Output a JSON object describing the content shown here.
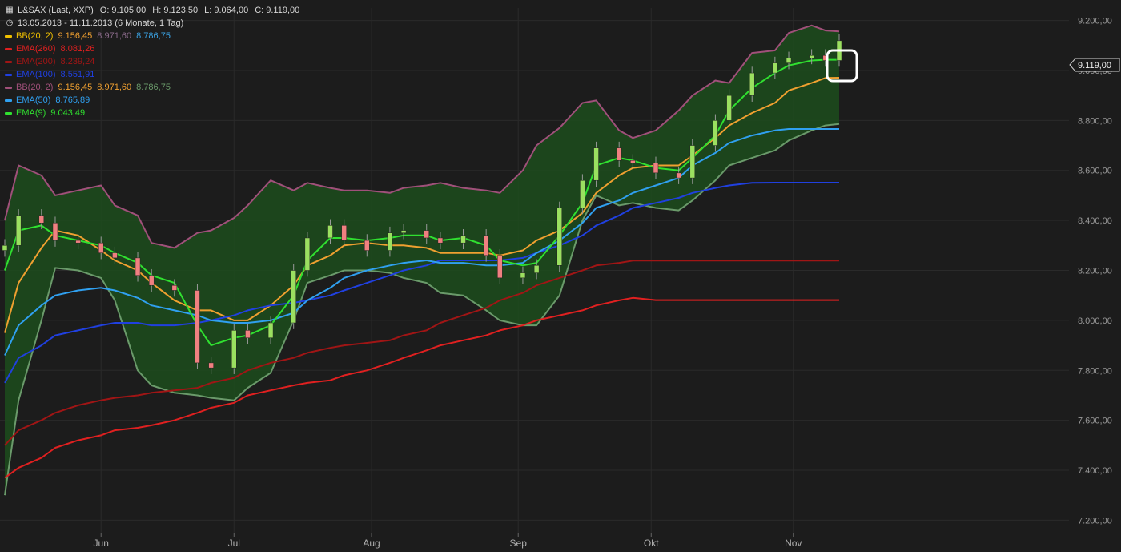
{
  "header": {
    "symbol": "L&SAX (Last, XXP)",
    "open": "O: 9.105,00",
    "high": "H: 9.123,50",
    "low": "L: 9.064,00",
    "close": "C: 9.119,00",
    "range": "13.05.2013 - 11.11.2013 (6 Monate, 1 Tag)"
  },
  "legend": [
    {
      "name": "BB(20, 2)",
      "values": [
        {
          "v": "9.156,45",
          "color": "#f0a030"
        },
        {
          "v": "8.971,60",
          "color": "#8a6a8a"
        },
        {
          "v": "8.786,75",
          "color": "#3aa0e0"
        }
      ],
      "color": "#f0c000"
    },
    {
      "name": "EMA(260)",
      "values": [
        {
          "v": "8.081,26",
          "color": "#e02020"
        }
      ],
      "color": "#e02020"
    },
    {
      "name": "EMA(200)",
      "values": [
        {
          "v": "8.239,24",
          "color": "#a01515"
        }
      ],
      "color": "#a01515"
    },
    {
      "name": "EMA(100)",
      "values": [
        {
          "v": "8.551,91",
          "color": "#2040e0"
        }
      ],
      "color": "#2040e0"
    },
    {
      "name": "BB(20, 2)",
      "values": [
        {
          "v": "9.156,45",
          "color": "#f0a030"
        },
        {
          "v": "8.971,60",
          "color": "#f0a030"
        },
        {
          "v": "8.786,75",
          "color": "#6a9a6a"
        }
      ],
      "color": "#a0507a"
    },
    {
      "name": "EMA(50)",
      "values": [
        {
          "v": "8.765,89",
          "color": "#30a0f0"
        }
      ],
      "color": "#30a0f0"
    },
    {
      "name": "EMA(9)",
      "values": [
        {
          "v": "9.043,49",
          "color": "#30e030"
        }
      ],
      "color": "#30e030"
    }
  ],
  "price_label": "9.119,00",
  "chart_data": {
    "type": "line",
    "title": "L&SAX (Last, XXP)",
    "ylim": [
      7150,
      9250
    ],
    "yticks": [
      {
        "v": 7200,
        "label": "7.200,00"
      },
      {
        "v": 7400,
        "label": "7.400,00"
      },
      {
        "v": 7600,
        "label": "7.600,00"
      },
      {
        "v": 7800,
        "label": "7.800,00"
      },
      {
        "v": 8000,
        "label": "8.000,00"
      },
      {
        "v": 8200,
        "label": "8.200,00"
      },
      {
        "v": 8400,
        "label": "8.400,00"
      },
      {
        "v": 8600,
        "label": "8.600,00"
      },
      {
        "v": 8800,
        "label": "8.800,00"
      },
      {
        "v": 9000,
        "label": "9.000,00"
      },
      {
        "v": 9200,
        "label": "9.200,00"
      }
    ],
    "x": [
      "2013-05-13",
      "2013-05-16",
      "2013-05-21",
      "2013-05-24",
      "2013-05-29",
      "2013-06-03",
      "2013-06-06",
      "2013-06-11",
      "2013-06-14",
      "2013-06-19",
      "2013-06-24",
      "2013-06-27",
      "2013-07-02",
      "2013-07-05",
      "2013-07-10",
      "2013-07-15",
      "2013-07-18",
      "2013-07-23",
      "2013-07-26",
      "2013-07-31",
      "2013-08-05",
      "2013-08-08",
      "2013-08-13",
      "2013-08-16",
      "2013-08-21",
      "2013-08-26",
      "2013-08-29",
      "2013-09-03",
      "2013-09-06",
      "2013-09-11",
      "2013-09-16",
      "2013-09-19",
      "2013-09-24",
      "2013-09-27",
      "2013-10-02",
      "2013-10-07",
      "2013-10-10",
      "2013-10-15",
      "2013-10-18",
      "2013-10-23",
      "2013-10-28",
      "2013-10-31",
      "2013-11-05",
      "2013-11-08",
      "2013-11-11"
    ],
    "xticks": [
      {
        "date": "2013-06-03",
        "label": "Jun"
      },
      {
        "date": "2013-07-02",
        "label": "Jul"
      },
      {
        "date": "2013-08-01",
        "label": "Aug"
      },
      {
        "date": "2013-09-02",
        "label": "Sep"
      },
      {
        "date": "2013-10-01",
        "label": "Okt"
      },
      {
        "date": "2013-11-01",
        "label": "Nov"
      }
    ],
    "grid": true,
    "close": [
      8300,
      8420,
      8390,
      8320,
      8310,
      8270,
      8250,
      8180,
      8140,
      8120,
      7830,
      7810,
      7960,
      7930,
      7990,
      8200,
      8330,
      8380,
      8320,
      8280,
      8350,
      8360,
      8330,
      8310,
      8340,
      8260,
      8170,
      8190,
      8220,
      8450,
      8560,
      8690,
      8640,
      8630,
      8590,
      8570,
      8700,
      8800,
      8900,
      8990,
      9030,
      9050,
      9060,
      9040,
      9119
    ],
    "series": [
      {
        "name": "BB(20, 2)",
        "color": "#a0507a",
        "values": [
          8400,
          8620,
          8580,
          8500,
          8520,
          8540,
          8460,
          8420,
          8310,
          8290,
          8350,
          8360,
          8410,
          8460,
          8560,
          8520,
          8550,
          8530,
          8520,
          8520,
          8510,
          8530,
          8540,
          8550,
          8530,
          8520,
          8510,
          8600,
          8700,
          8770,
          8870,
          8880,
          8760,
          8730,
          8760,
          8840,
          8900,
          8960,
          8950,
          9070,
          9080,
          9150,
          9180,
          9160,
          9156
        ]
      },
      {
        "name": "BB(20, 2)",
        "color": "#f0a030",
        "values": [
          7950,
          8150,
          8290,
          8360,
          8340,
          8280,
          8240,
          8200,
          8150,
          8080,
          8040,
          8040,
          8000,
          8000,
          8060,
          8140,
          8220,
          8260,
          8300,
          8310,
          8300,
          8300,
          8290,
          8270,
          8270,
          8270,
          8260,
          8280,
          8320,
          8360,
          8430,
          8510,
          8580,
          8610,
          8620,
          8620,
          8660,
          8730,
          8780,
          8830,
          8870,
          8920,
          8950,
          8970,
          8971
        ]
      },
      {
        "name": "BB(20, 2)",
        "color": "#6a9a6a",
        "values": [
          7300,
          7680,
          8000,
          8210,
          8200,
          8170,
          8080,
          7800,
          7740,
          7710,
          7700,
          7690,
          7680,
          7730,
          7790,
          8000,
          8150,
          8180,
          8200,
          8200,
          8190,
          8170,
          8150,
          8110,
          8100,
          8040,
          8000,
          7980,
          7980,
          8100,
          8400,
          8500,
          8460,
          8470,
          8450,
          8440,
          8480,
          8560,
          8620,
          8650,
          8680,
          8720,
          8760,
          8780,
          8786
        ]
      },
      {
        "name": "EMA(260)",
        "color": "#e02020",
        "values": [
          7370,
          7410,
          7450,
          7490,
          7520,
          7540,
          7560,
          7570,
          7580,
          7600,
          7630,
          7650,
          7670,
          7700,
          7720,
          7740,
          7750,
          7760,
          7780,
          7800,
          7830,
          7850,
          7880,
          7900,
          7920,
          7940,
          7960,
          7980,
          8000,
          8020,
          8040,
          8060,
          8080,
          8090,
          8081,
          8081,
          8081,
          8081,
          8081,
          8081,
          8081,
          8081,
          8081,
          8081,
          8081
        ]
      },
      {
        "name": "EMA(200)",
        "color": "#a01515",
        "values": [
          7500,
          7560,
          7600,
          7630,
          7660,
          7680,
          7690,
          7700,
          7710,
          7720,
          7730,
          7750,
          7770,
          7800,
          7830,
          7850,
          7870,
          7890,
          7900,
          7910,
          7920,
          7940,
          7960,
          7990,
          8020,
          8050,
          8080,
          8110,
          8140,
          8170,
          8200,
          8220,
          8230,
          8239,
          8239,
          8239,
          8239,
          8239,
          8239,
          8239,
          8239,
          8239,
          8239,
          8239,
          8239
        ]
      },
      {
        "name": "EMA(100)",
        "color": "#2040e0",
        "values": [
          7750,
          7850,
          7900,
          7940,
          7960,
          7980,
          7990,
          7990,
          7980,
          7980,
          7990,
          8000,
          8020,
          8040,
          8060,
          8070,
          8080,
          8100,
          8120,
          8150,
          8180,
          8200,
          8220,
          8240,
          8240,
          8240,
          8240,
          8250,
          8270,
          8300,
          8340,
          8380,
          8420,
          8450,
          8470,
          8490,
          8510,
          8530,
          8540,
          8550,
          8551,
          8551,
          8551,
          8551,
          8551
        ]
      },
      {
        "name": "EMA(50)",
        "color": "#30a0f0",
        "values": [
          7860,
          7980,
          8060,
          8100,
          8120,
          8130,
          8120,
          8090,
          8060,
          8040,
          8020,
          8000,
          7990,
          7990,
          8000,
          8030,
          8080,
          8130,
          8170,
          8200,
          8220,
          8230,
          8240,
          8230,
          8230,
          8220,
          8220,
          8230,
          8270,
          8320,
          8390,
          8450,
          8480,
          8510,
          8540,
          8570,
          8620,
          8670,
          8710,
          8740,
          8760,
          8766,
          8766,
          8766,
          8766
        ]
      },
      {
        "name": "EMA(9)",
        "color": "#30e030",
        "values": [
          8200,
          8360,
          8380,
          8340,
          8320,
          8300,
          8270,
          8230,
          8180,
          8150,
          7980,
          7900,
          7930,
          7940,
          7980,
          8100,
          8240,
          8330,
          8330,
          8320,
          8330,
          8340,
          8340,
          8320,
          8330,
          8300,
          8240,
          8220,
          8230,
          8340,
          8470,
          8620,
          8650,
          8640,
          8610,
          8600,
          8650,
          8740,
          8840,
          8930,
          8990,
          9020,
          9040,
          9043,
          9043
        ]
      }
    ]
  }
}
